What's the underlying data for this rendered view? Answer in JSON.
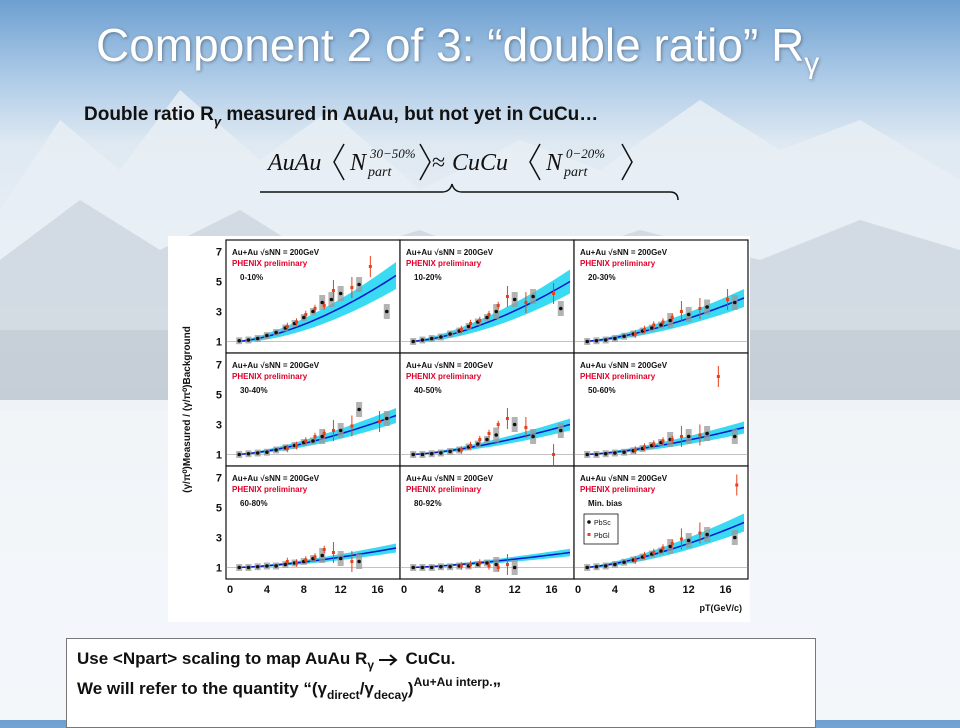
{
  "slide": {
    "title_main": "Component 2 of 3: “double ratio” R",
    "title_sub": "γ",
    "subtitle_pre": "Double ratio R",
    "subtitle_sub": "γ",
    "subtitle_post": " measured in AuAu, but not yet in CuCu…",
    "formula": {
      "left_sys": "AuAu",
      "left_sup": "30−50%",
      "approx": "≈",
      "right_sys": "CuCu",
      "right_sup": "0−20%",
      "n": "N",
      "part": "part"
    },
    "note": {
      "line1_pre": "Use <Npart> scaling to map AuAu R",
      "line1_sub": "γ",
      "line1_post": "  CuCu.",
      "line2_pre": "We will refer to the quantity “(γ",
      "line2_sub1": "direct",
      "line2_mid": "/γ",
      "line2_sub2": "decay",
      "line2_close": ")",
      "line2_sup": "Au+Au interp.",
      "line2_end": "”"
    }
  },
  "chart_data": {
    "type": "scatter",
    "ylabel": "(γ/π⁰)Measured / (γ/π⁰)Background",
    "xlabel": "pT(GeV/c)",
    "xlim": [
      0,
      18
    ],
    "ylim": [
      0.5,
      7.5
    ],
    "xticks": [
      0,
      4,
      8,
      12,
      16
    ],
    "yticks": [
      1,
      3,
      5,
      7
    ],
    "panel_header_1": "Au+Au √sNN = 200GeV",
    "panel_header_2": "PHENIX preliminary",
    "legend": [
      "PbSc",
      "PbGl"
    ],
    "colors": {
      "band": "#17d4f0",
      "curve": "#0018cc",
      "pbsc": "#111111",
      "pbgl": "#e8401c",
      "sys": "#999999",
      "label_red": "#e0002a"
    },
    "panels": [
      {
        "label": "0-10%",
        "curve_end": 5.4,
        "curve_power": 1.6,
        "band_w": 0.9,
        "pbsc": [
          [
            1,
            1.05
          ],
          [
            2,
            1.1
          ],
          [
            3,
            1.2
          ],
          [
            4,
            1.4
          ],
          [
            5,
            1.6
          ],
          [
            6,
            1.9
          ],
          [
            7,
            2.2
          ],
          [
            8,
            2.6
          ],
          [
            9,
            3.0
          ],
          [
            10,
            3.6
          ],
          [
            11,
            3.8
          ],
          [
            12,
            4.2
          ],
          [
            14,
            4.8
          ],
          [
            17,
            3.0
          ]
        ],
        "pbgl": [
          [
            6,
            2.0
          ],
          [
            7,
            2.3
          ],
          [
            8,
            2.8
          ],
          [
            9,
            3.2
          ],
          [
            10,
            3.4
          ],
          [
            11,
            4.4
          ],
          [
            13,
            4.6
          ],
          [
            15,
            6.0
          ]
        ]
      },
      {
        "label": "10-20%",
        "curve_end": 5.0,
        "curve_power": 1.6,
        "band_w": 0.8,
        "pbsc": [
          [
            1,
            1.0
          ],
          [
            2,
            1.1
          ],
          [
            3,
            1.2
          ],
          [
            4,
            1.3
          ],
          [
            5,
            1.5
          ],
          [
            6,
            1.7
          ],
          [
            7,
            2.0
          ],
          [
            8,
            2.3
          ],
          [
            9,
            2.6
          ],
          [
            10,
            3.0
          ],
          [
            12,
            3.8
          ],
          [
            14,
            4.0
          ],
          [
            17,
            3.2
          ]
        ],
        "pbgl": [
          [
            6,
            1.8
          ],
          [
            7,
            2.2
          ],
          [
            8,
            2.4
          ],
          [
            9,
            2.8
          ],
          [
            10,
            3.4
          ],
          [
            11,
            4.0
          ],
          [
            13,
            3.6
          ],
          [
            16,
            4.2
          ]
        ]
      },
      {
        "label": "20-30%",
        "curve_end": 3.9,
        "curve_power": 1.5,
        "band_w": 0.6,
        "pbsc": [
          [
            1,
            1.0
          ],
          [
            2,
            1.05
          ],
          [
            3,
            1.1
          ],
          [
            4,
            1.2
          ],
          [
            5,
            1.35
          ],
          [
            6,
            1.5
          ],
          [
            7,
            1.7
          ],
          [
            8,
            1.9
          ],
          [
            9,
            2.1
          ],
          [
            10,
            2.4
          ],
          [
            12,
            2.8
          ],
          [
            14,
            3.3
          ],
          [
            17,
            3.6
          ]
        ],
        "pbgl": [
          [
            6,
            1.5
          ],
          [
            7,
            1.8
          ],
          [
            8,
            2.1
          ],
          [
            9,
            2.3
          ],
          [
            10,
            2.6
          ],
          [
            11,
            3.0
          ],
          [
            13,
            3.2
          ],
          [
            16,
            3.8
          ]
        ]
      },
      {
        "label": "30-40%",
        "curve_end": 3.6,
        "curve_power": 1.5,
        "band_w": 0.5,
        "pbsc": [
          [
            1,
            1.0
          ],
          [
            2,
            1.05
          ],
          [
            3,
            1.1
          ],
          [
            4,
            1.15
          ],
          [
            5,
            1.3
          ],
          [
            6,
            1.45
          ],
          [
            7,
            1.6
          ],
          [
            8,
            1.8
          ],
          [
            9,
            1.9
          ],
          [
            10,
            2.2
          ],
          [
            12,
            2.6
          ],
          [
            14,
            4.0
          ],
          [
            17,
            3.4
          ]
        ],
        "pbgl": [
          [
            6,
            1.4
          ],
          [
            7,
            1.6
          ],
          [
            8,
            1.9
          ],
          [
            9,
            2.2
          ],
          [
            10,
            2.4
          ],
          [
            11,
            2.6
          ],
          [
            13,
            2.9
          ],
          [
            16,
            3.2
          ]
        ]
      },
      {
        "label": "40-50%",
        "curve_end": 3.0,
        "curve_power": 1.5,
        "band_w": 0.4,
        "pbsc": [
          [
            1,
            1.0
          ],
          [
            2,
            1.0
          ],
          [
            3,
            1.05
          ],
          [
            4,
            1.1
          ],
          [
            5,
            1.2
          ],
          [
            6,
            1.3
          ],
          [
            7,
            1.5
          ],
          [
            8,
            1.7
          ],
          [
            9,
            2.0
          ],
          [
            10,
            2.3
          ],
          [
            12,
            3.0
          ],
          [
            14,
            2.2
          ],
          [
            17,
            2.6
          ]
        ],
        "pbgl": [
          [
            6,
            1.3
          ],
          [
            7,
            1.6
          ],
          [
            8,
            2.0
          ],
          [
            9,
            2.4
          ],
          [
            10,
            3.0
          ],
          [
            11,
            3.4
          ],
          [
            13,
            2.8
          ],
          [
            16,
            1.0
          ]
        ]
      },
      {
        "label": "50-60%",
        "curve_end": 2.8,
        "curve_power": 1.5,
        "band_w": 0.4,
        "pbsc": [
          [
            1,
            1.0
          ],
          [
            2,
            1.0
          ],
          [
            3,
            1.05
          ],
          [
            4,
            1.1
          ],
          [
            5,
            1.15
          ],
          [
            6,
            1.25
          ],
          [
            7,
            1.4
          ],
          [
            8,
            1.6
          ],
          [
            9,
            1.8
          ],
          [
            10,
            2.0
          ],
          [
            12,
            2.2
          ],
          [
            14,
            2.4
          ],
          [
            17,
            2.2
          ]
        ],
        "pbgl": [
          [
            6,
            1.3
          ],
          [
            7,
            1.5
          ],
          [
            8,
            1.7
          ],
          [
            9,
            1.9
          ],
          [
            10,
            2.0
          ],
          [
            11,
            2.2
          ],
          [
            13,
            2.3
          ],
          [
            15,
            6.2
          ]
        ]
      },
      {
        "label": "60-80%",
        "curve_end": 2.3,
        "curve_power": 1.5,
        "band_w": 0.3,
        "pbsc": [
          [
            1,
            1.0
          ],
          [
            2,
            1.0
          ],
          [
            3,
            1.05
          ],
          [
            4,
            1.1
          ],
          [
            5,
            1.1
          ],
          [
            6,
            1.2
          ],
          [
            7,
            1.3
          ],
          [
            8,
            1.4
          ],
          [
            9,
            1.6
          ],
          [
            10,
            1.8
          ],
          [
            12,
            1.6
          ],
          [
            14,
            1.4
          ]
        ],
        "pbgl": [
          [
            6,
            1.4
          ],
          [
            7,
            1.3
          ],
          [
            8,
            1.5
          ],
          [
            9,
            1.7
          ],
          [
            10,
            2.2
          ],
          [
            11,
            2.0
          ],
          [
            13,
            1.4
          ]
        ]
      },
      {
        "label": "80-92%",
        "curve_end": 2.0,
        "curve_power": 1.4,
        "band_w": 0.25,
        "pbsc": [
          [
            1,
            1.0
          ],
          [
            2,
            1.0
          ],
          [
            3,
            1.0
          ],
          [
            4,
            1.05
          ],
          [
            5,
            1.05
          ],
          [
            6,
            1.1
          ],
          [
            7,
            1.1
          ],
          [
            8,
            1.2
          ],
          [
            9,
            1.3
          ],
          [
            10,
            1.2
          ],
          [
            12,
            1.0
          ]
        ],
        "pbgl": [
          [
            6,
            1.1
          ],
          [
            7,
            1.2
          ],
          [
            8,
            1.3
          ],
          [
            9,
            1.1
          ],
          [
            10,
            1.0
          ],
          [
            11,
            1.2
          ]
        ]
      },
      {
        "label": "Min. bias",
        "curve_end": 4.0,
        "curve_power": 1.5,
        "band_w": 0.6,
        "legend": true,
        "pbsc": [
          [
            1,
            1.0
          ],
          [
            2,
            1.05
          ],
          [
            3,
            1.1
          ],
          [
            4,
            1.2
          ],
          [
            5,
            1.35
          ],
          [
            6,
            1.5
          ],
          [
            7,
            1.7
          ],
          [
            8,
            1.9
          ],
          [
            9,
            2.1
          ],
          [
            10,
            2.4
          ],
          [
            12,
            2.8
          ],
          [
            14,
            3.2
          ],
          [
            17,
            3.0
          ]
        ],
        "pbgl": [
          [
            6,
            1.5
          ],
          [
            7,
            1.8
          ],
          [
            8,
            2.0
          ],
          [
            9,
            2.3
          ],
          [
            10,
            2.6
          ],
          [
            11,
            2.9
          ],
          [
            13,
            3.3
          ],
          [
            17,
            6.5
          ]
        ]
      }
    ]
  }
}
